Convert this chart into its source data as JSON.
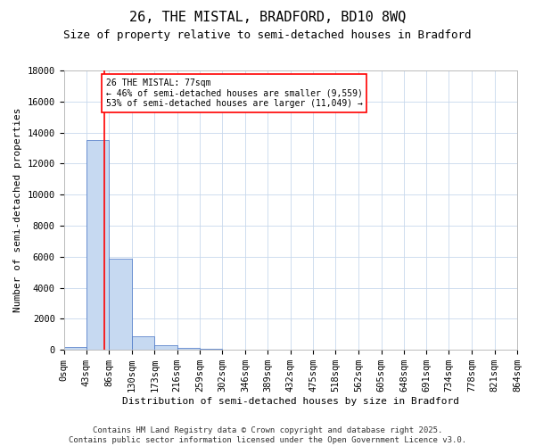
{
  "title": "26, THE MISTAL, BRADFORD, BD10 8WQ",
  "subtitle": "Size of property relative to semi-detached houses in Bradford",
  "xlabel": "Distribution of semi-detached houses by size in Bradford",
  "ylabel": "Number of semi-detached properties",
  "bin_edges": [
    0,
    43,
    86,
    130,
    173,
    216,
    259,
    302,
    346,
    389,
    432,
    475,
    518,
    562,
    605,
    648,
    691,
    734,
    778,
    821,
    864
  ],
  "bin_counts": [
    200,
    13500,
    5900,
    900,
    300,
    100,
    60,
    20,
    10,
    5,
    2,
    1,
    0,
    0,
    0,
    0,
    0,
    0,
    0,
    0
  ],
  "property_size": 77,
  "bar_color": "#c6d9f1",
  "bar_edge_color": "#4472c4",
  "red_line_color": "#ff0000",
  "annotation_text": "26 THE MISTAL: 77sqm\n← 46% of semi-detached houses are smaller (9,559)\n53% of semi-detached houses are larger (11,049) →",
  "annotation_box_color": "#ff0000",
  "ylim": [
    0,
    18000
  ],
  "yticks": [
    0,
    2000,
    4000,
    6000,
    8000,
    10000,
    12000,
    14000,
    16000,
    18000
  ],
  "tick_labels": [
    "0sqm",
    "43sqm",
    "86sqm",
    "130sqm",
    "173sqm",
    "216sqm",
    "259sqm",
    "302sqm",
    "346sqm",
    "389sqm",
    "432sqm",
    "475sqm",
    "518sqm",
    "562sqm",
    "605sqm",
    "648sqm",
    "691sqm",
    "734sqm",
    "778sqm",
    "821sqm",
    "864sqm"
  ],
  "footer_line1": "Contains HM Land Registry data © Crown copyright and database right 2025.",
  "footer_line2": "Contains public sector information licensed under the Open Government Licence v3.0.",
  "background_color": "#ffffff",
  "grid_color": "#c8d8ec",
  "title_fontsize": 11,
  "subtitle_fontsize": 9,
  "axis_label_fontsize": 8,
  "tick_fontsize": 7.5,
  "annotation_fontsize": 7,
  "footer_fontsize": 6.5
}
